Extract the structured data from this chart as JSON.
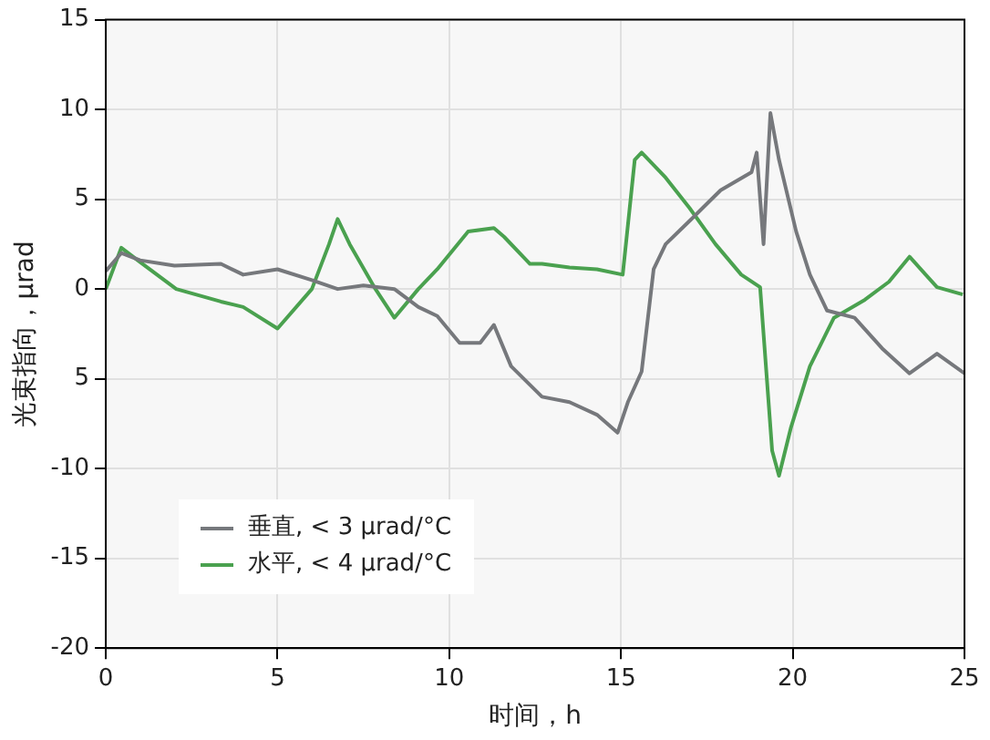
{
  "chart_data": {
    "type": "line",
    "xlabel": "时间，h",
    "ylabel": "光束指向，μrad",
    "xlim": [
      0,
      25
    ],
    "xticks": [
      0,
      5,
      10,
      15,
      20,
      25
    ],
    "ylim": [
      -20,
      15
    ],
    "yticks": [
      -20,
      -15,
      -10,
      {
        "value": -5,
        "label": "5"
      },
      0,
      5,
      10,
      15
    ],
    "grid": true,
    "legend": "bottom left",
    "marker": "none",
    "line_style": "solid",
    "series": [
      {
        "name": "垂直, < 3 μrad/°C",
        "color": "#76787c",
        "x": [
          0,
          0.45,
          1,
          2,
          3.35,
          4,
          5,
          6,
          6.75,
          7.5,
          8.4,
          9.1,
          9.65,
          10.3,
          10.9,
          11.3,
          11.8,
          12.7,
          13.5,
          14.3,
          14.9,
          15.2,
          15.6,
          15.95,
          16.3,
          17,
          17.9,
          18.8,
          18.95,
          19.15,
          19.35,
          19.6,
          20.1,
          20.5,
          21,
          21.8,
          22.6,
          23.4,
          24.2,
          25
        ],
        "values": [
          1,
          2,
          1.6,
          1.3,
          1.4,
          0.8,
          1.1,
          0.5,
          0,
          0.2,
          0,
          -1,
          -1.5,
          -3,
          -3,
          -2,
          -4.3,
          -6,
          -6.3,
          -7,
          -8,
          -6.3,
          -4.6,
          1.1,
          2.5,
          3.8,
          5.5,
          6.5,
          7.6,
          2.5,
          9.8,
          7.2,
          3.2,
          0.8,
          -1.2,
          -1.6,
          -3.3,
          -4.7,
          -3.6,
          -4.7
        ]
      },
      {
        "name": "水平, < 4 μrad/°C",
        "color": "#4aa14f",
        "x": [
          0,
          0.45,
          1,
          2.05,
          3.35,
          4,
          5,
          6,
          6.5,
          6.75,
          7.1,
          7.85,
          8.4,
          9.1,
          9.65,
          10.55,
          11.3,
          11.6,
          12.35,
          12.7,
          13.5,
          14.3,
          15.05,
          15.4,
          15.6,
          16.3,
          17,
          17.75,
          18.5,
          19.05,
          19.4,
          19.6,
          19.95,
          20.5,
          21.2,
          22.1,
          22.8,
          23.4,
          24.2,
          24.95
        ],
        "values": [
          0,
          2.3,
          1.5,
          0,
          -0.7,
          -1,
          -2.2,
          0,
          2.5,
          3.9,
          2.5,
          0,
          -1.6,
          0,
          1.1,
          3.2,
          3.4,
          2.9,
          1.4,
          1.4,
          1.2,
          1.1,
          0.8,
          7.2,
          7.6,
          6.2,
          4.5,
          2.5,
          0.8,
          0.1,
          -9,
          -10.4,
          -7.7,
          -4.3,
          -1.6,
          -0.6,
          0.4,
          1.8,
          0.1,
          -0.3
        ]
      }
    ]
  }
}
